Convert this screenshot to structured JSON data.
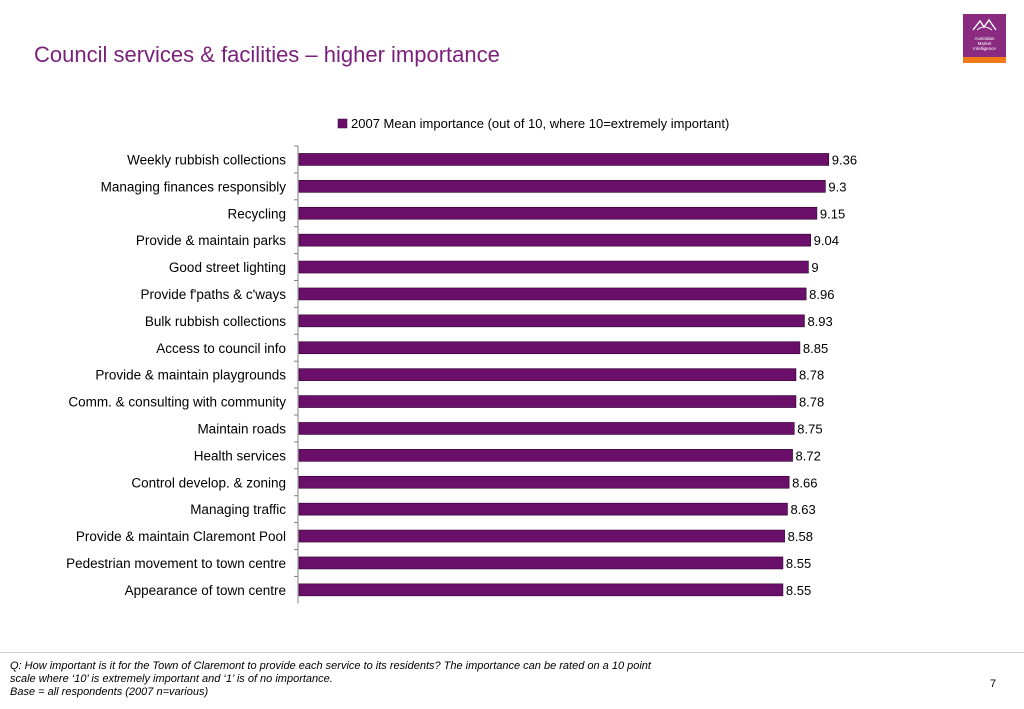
{
  "title": "Council services & facilities – higher importance",
  "logo": {
    "text": [
      "Australian",
      "Market",
      "Intelligence"
    ]
  },
  "chart_data": {
    "type": "bar",
    "orientation": "horizontal",
    "categories": [
      "Weekly rubbish collections",
      "Managing finances responsibly",
      "Recycling",
      "Provide & maintain parks",
      "Good street lighting",
      "Provide f'paths & c'ways",
      "Bulk rubbish collections",
      "Access to council info",
      "Provide & maintain playgrounds",
      "Comm. & consulting with community",
      "Maintain roads",
      "Health services",
      "Control develop. & zoning",
      "Managing traffic",
      "Provide & maintain Claremont Pool",
      "Pedestrian movement to town centre",
      "Appearance of town centre"
    ],
    "series": [
      {
        "name": "2007 Mean importance (out of 10, where 10=extremely important)",
        "values": [
          9.36,
          9.3,
          9.15,
          9.04,
          9,
          8.96,
          8.93,
          8.85,
          8.78,
          8.78,
          8.75,
          8.72,
          8.66,
          8.63,
          8.58,
          8.55,
          8.55
        ],
        "color": "#6a0f6a"
      }
    ],
    "xlim": [
      0,
      10
    ],
    "legend": "top",
    "grid": false
  },
  "footnote": [
    "Q: How important is it for the Town of Claremont to provide each service to its residents? The importance can be rated on a 10 point",
    "scale where ‘10’ is extremely important and ‘1’ is of no importance.",
    "Base = all respondents (2007 n=various)"
  ],
  "page_number": "7"
}
